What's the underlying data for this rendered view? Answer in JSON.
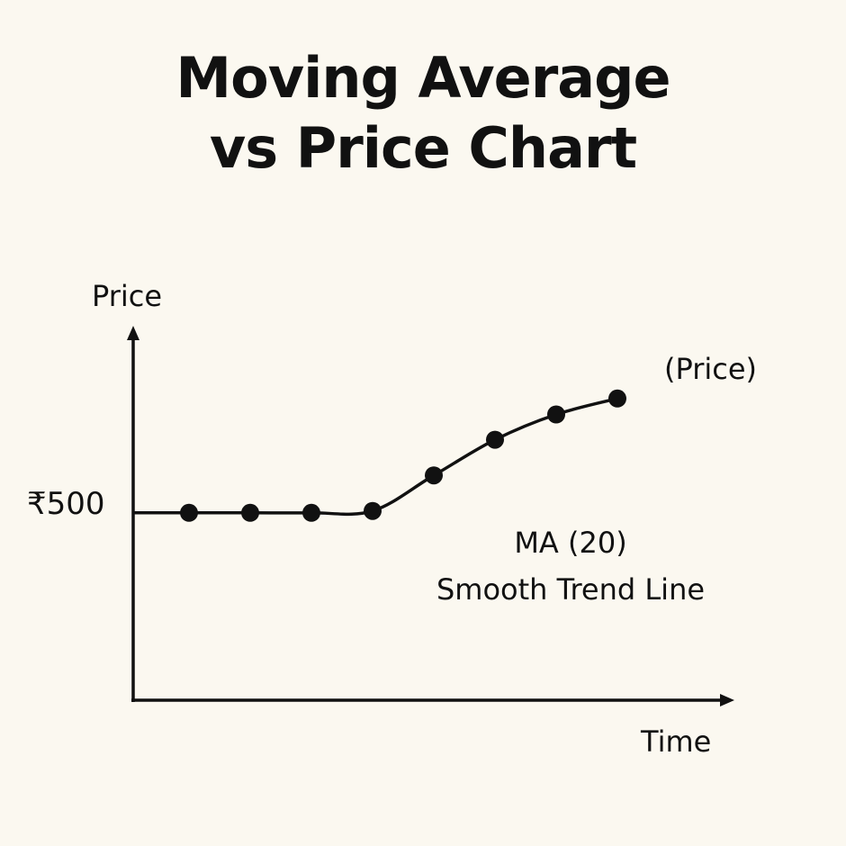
{
  "title_line_1": "Moving Average",
  "title_line_2": "vs Price Chart",
  "chart_data": {
    "type": "line",
    "xlabel": "Time",
    "ylabel": "Price",
    "y_tick_label": "₹500",
    "y_tick_value": 500,
    "series": [
      {
        "name": "(Price)",
        "values": [
          500,
          500,
          500,
          502,
          540,
          578,
          605,
          622
        ]
      }
    ],
    "annotation": {
      "line_1": "MA (20)",
      "line_2": "Smooth Trend Line"
    },
    "ylim": [
      300,
      690
    ],
    "grid": false,
    "legend_placement": "end-of-line",
    "line_color": "#111111"
  }
}
